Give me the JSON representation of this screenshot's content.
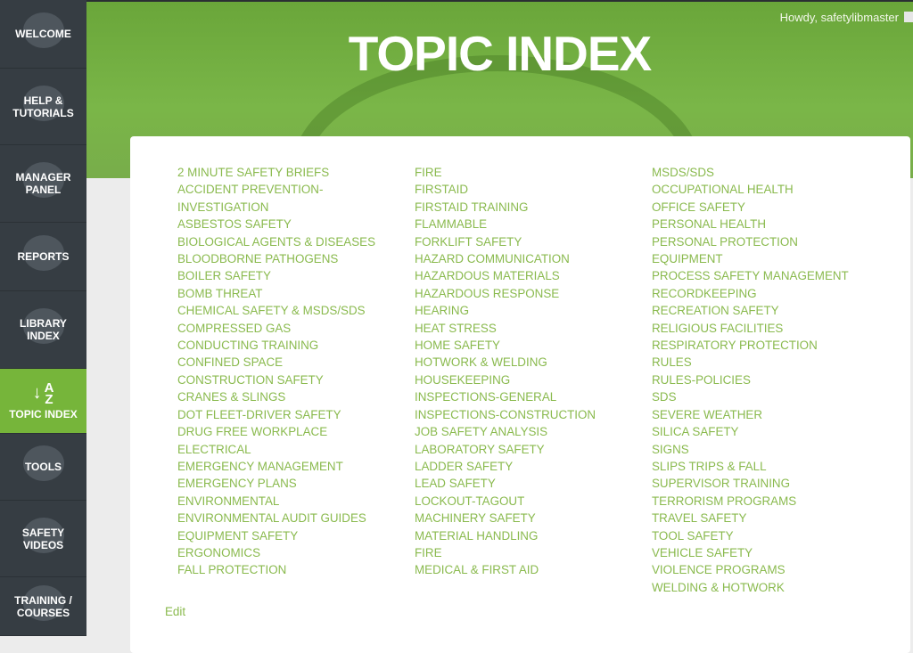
{
  "colors": {
    "sidebar": "#363d43",
    "accent": "#76b53a",
    "link": "#8aba4e"
  },
  "sidebar": {
    "items": [
      {
        "label": "WELCOME",
        "icon": "user-add-icon"
      },
      {
        "label": "HELP &\nTUTORIALS",
        "icon": "help-icon"
      },
      {
        "label": "MANAGER\nPANEL",
        "icon": "users-icon"
      },
      {
        "label": "REPORTS",
        "icon": "pie-chart-icon"
      },
      {
        "label": "LIBRARY\nINDEX",
        "icon": "book-icon"
      },
      {
        "label": "TOPIC INDEX",
        "icon": "sort-az-icon",
        "active": true,
        "icon_a": "A",
        "icon_z": "Z"
      },
      {
        "label": "TOOLS",
        "icon": "wrench-icon"
      },
      {
        "label": "SAFETY\nVIDEOS",
        "icon": "video-icon"
      },
      {
        "label": "TRAINING /\nCOURSES",
        "icon": "graduation-cap-icon"
      }
    ]
  },
  "header": {
    "title": "TOPIC INDEX",
    "greeting": "Howdy, safetylibmaster"
  },
  "topics": {
    "col1": [
      "2 MINUTE SAFETY BRIEFS",
      "ACCIDENT PREVENTION-\nINVESTIGATION",
      "ASBESTOS SAFETY",
      "BIOLOGICAL AGENTS & DISEASES",
      "BLOODBORNE PATHOGENS",
      "BOILER SAFETY",
      "BOMB THREAT",
      "CHEMICAL SAFETY & MSDS/SDS",
      "COMPRESSED GAS",
      "CONDUCTING TRAINING",
      "CONFINED SPACE",
      "CONSTRUCTION SAFETY",
      "CRANES & SLINGS",
      "DOT FLEET-DRIVER SAFETY",
      "DRUG FREE WORKPLACE",
      "ELECTRICAL",
      "EMERGENCY MANAGEMENT",
      "EMERGENCY PLANS",
      "ENVIRONMENTAL",
      "ENVIRONMENTAL AUDIT GUIDES",
      "EQUIPMENT SAFETY",
      "ERGONOMICS",
      "FALL PROTECTION"
    ],
    "col2": [
      "FIRE",
      "FIRSTAID",
      "FIRSTAID TRAINING",
      "FLAMMABLE",
      "FORKLIFT SAFETY",
      "HAZARD COMMUNICATION",
      "HAZARDOUS MATERIALS",
      "HAZARDOUS RESPONSE",
      "HEARING",
      "HEAT STRESS",
      "HOME SAFETY",
      "HOTWORK & WELDING",
      "HOUSEKEEPING",
      "INSPECTIONS-GENERAL",
      "INSPECTIONS-CONSTRUCTION",
      "JOB SAFETY ANALYSIS",
      "LABORATORY SAFETY",
      "LADDER SAFETY",
      "LEAD SAFETY",
      "LOCKOUT-TAGOUT",
      "MACHINERY SAFETY",
      "MATERIAL HANDLING",
      "FIRE",
      "MEDICAL & FIRST AID"
    ],
    "col3": [
      "MSDS/SDS",
      "OCCUPATIONAL HEALTH",
      "OFFICE SAFETY",
      "PERSONAL HEALTH",
      "PERSONAL PROTECTION\nEQUIPMENT",
      "PROCESS SAFETY MANAGEMENT",
      "RECORDKEEPING",
      "RECREATION SAFETY",
      "RELIGIOUS FACILITIES",
      "RESPIRATORY PROTECTION",
      "RULES",
      "RULES-POLICIES",
      "SDS",
      "SEVERE WEATHER",
      "SILICA SAFETY",
      "SIGNS",
      "SLIPS TRIPS & FALL",
      "SUPERVISOR TRAINING",
      "TERRORISM PROGRAMS",
      "TRAVEL SAFETY",
      "TOOL SAFETY",
      "VEHICLE SAFETY",
      "VIOLENCE PROGRAMS",
      "WELDING & HOTWORK"
    ]
  },
  "edit_label": "Edit"
}
